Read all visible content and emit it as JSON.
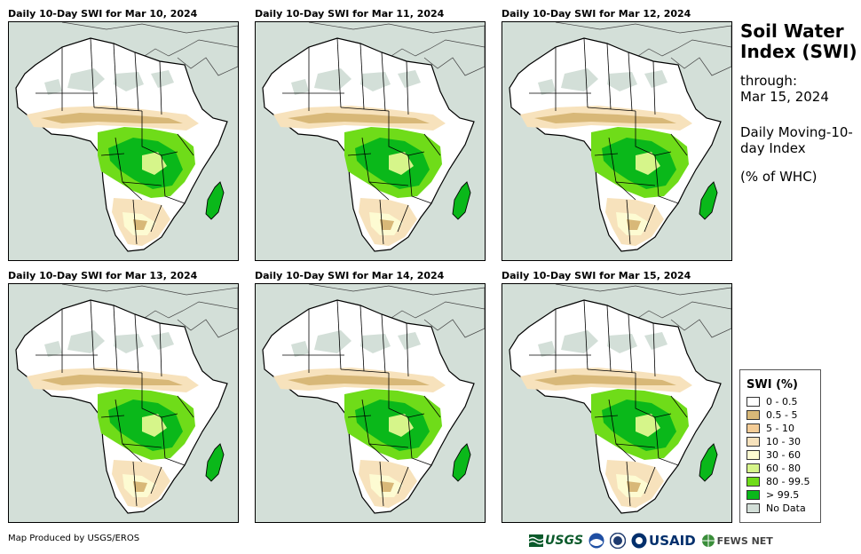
{
  "sidebar": {
    "title": "Soil Water Index (SWI)",
    "through_label": "through:",
    "through_date": "Mar 15, 2024",
    "description": "Daily Moving-10-day Index",
    "unit": "(% of WHC)"
  },
  "panels": [
    {
      "title": "Daily 10-Day SWI for Mar 10, 2024"
    },
    {
      "title": "Daily 10-Day SWI for Mar 11, 2024"
    },
    {
      "title": "Daily 10-Day SWI for Mar 12, 2024"
    },
    {
      "title": "Daily 10-Day SWI for Mar 13, 2024"
    },
    {
      "title": "Daily 10-Day SWI for Mar 14, 2024"
    },
    {
      "title": "Daily 10-Day SWI for Mar 15, 2024"
    }
  ],
  "legend": {
    "title": "SWI (%)",
    "items": [
      {
        "label": "0 - 0.5",
        "color": "#ffffff"
      },
      {
        "label": "0.5 - 5",
        "color": "#d8b878"
      },
      {
        "label": "5 - 10",
        "color": "#f4cc96"
      },
      {
        "label": "10 - 30",
        "color": "#f7e2bc"
      },
      {
        "label": "30 - 60",
        "color": "#fdfbd2"
      },
      {
        "label": "60 - 80",
        "color": "#d6f58a"
      },
      {
        "label": "80 - 99.5",
        "color": "#6fdc19"
      },
      {
        "label": "> 99.5",
        "color": "#0ab81a"
      },
      {
        "label": "No Data",
        "color": "#d3dfd8"
      }
    ]
  },
  "footer": {
    "credit": "Map Produced by USGS/EROS",
    "logos": {
      "usgs": "USGS",
      "usaid": "USAID",
      "fewsnet": "FEWS NET"
    }
  }
}
